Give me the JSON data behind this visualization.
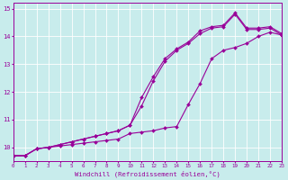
{
  "xlabel": "Windchill (Refroidissement éolien,°C)",
  "bg_color": "#c8ecec",
  "grid_color": "#ffffff",
  "line_color": "#990099",
  "xlim": [
    0,
    23
  ],
  "ylim": [
    9.5,
    15.2
  ],
  "xticks": [
    0,
    1,
    2,
    3,
    4,
    5,
    6,
    7,
    8,
    9,
    10,
    11,
    12,
    13,
    14,
    15,
    16,
    17,
    18,
    19,
    20,
    21,
    22,
    23
  ],
  "yticks": [
    10,
    11,
    12,
    13,
    14,
    15
  ],
  "series1_x": [
    0,
    1,
    2,
    3,
    4,
    5,
    6,
    7,
    8,
    9,
    10,
    11,
    12,
    13,
    14,
    15,
    16,
    17,
    18,
    19,
    20,
    21,
    22,
    23
  ],
  "series1_y": [
    9.7,
    9.7,
    9.95,
    10.0,
    10.05,
    10.1,
    10.15,
    10.2,
    10.25,
    10.3,
    10.5,
    10.55,
    10.6,
    10.7,
    10.75,
    11.55,
    12.3,
    13.2,
    13.5,
    13.6,
    13.75,
    14.0,
    14.15,
    14.05
  ],
  "series2_x": [
    0,
    1,
    2,
    3,
    4,
    5,
    6,
    7,
    8,
    9,
    10,
    11,
    12,
    13,
    14,
    15,
    16,
    17,
    18,
    19,
    20,
    21,
    22,
    23
  ],
  "series2_y": [
    9.7,
    9.7,
    9.95,
    10.0,
    10.1,
    10.2,
    10.3,
    10.4,
    10.5,
    10.6,
    10.8,
    11.5,
    12.4,
    13.1,
    13.5,
    13.75,
    14.1,
    14.3,
    14.35,
    14.8,
    14.25,
    14.25,
    14.3,
    14.05
  ],
  "series3_x": [
    0,
    1,
    2,
    3,
    4,
    5,
    6,
    7,
    8,
    9,
    10,
    11,
    12,
    13,
    14,
    15,
    16,
    17,
    18,
    19,
    20,
    21,
    22,
    23
  ],
  "series3_y": [
    9.7,
    9.7,
    9.95,
    10.0,
    10.1,
    10.2,
    10.3,
    10.4,
    10.5,
    10.6,
    10.8,
    11.8,
    12.55,
    13.2,
    13.55,
    13.8,
    14.2,
    14.35,
    14.4,
    14.85,
    14.3,
    14.3,
    14.35,
    14.1
  ]
}
